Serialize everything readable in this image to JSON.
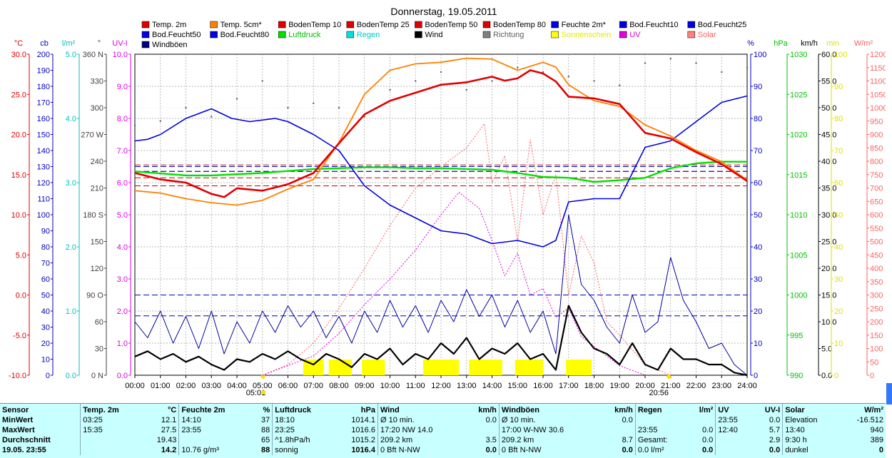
{
  "chart_data": {
    "type": "line",
    "title": "Donnerstag, 19.05.2011",
    "x_ticks": [
      "00:00",
      "01:00",
      "02:00",
      "03:00",
      "04:00",
      "05:00",
      "06:00",
      "07:00",
      "08:00",
      "09:00",
      "10:00",
      "11:00",
      "12:00",
      "13:00",
      "14:00",
      "15:00",
      "16:00",
      "17:00",
      "18:00",
      "19:00",
      "20:00",
      "21:00",
      "22:00",
      "23:00",
      "24:00"
    ],
    "sunrise_label": "05:01",
    "sunset_label": "20:56",
    "legend": [
      {
        "name": "Temp. 2m",
        "color": "#e00000"
      },
      {
        "name": "Temp. 5cm*",
        "color": "#ff8000"
      },
      {
        "name": "BodenTemp 10",
        "color": "#e00000"
      },
      {
        "name": "BodenTemp 25",
        "color": "#e00000"
      },
      {
        "name": "BodenTemp 50",
        "color": "#e00000"
      },
      {
        "name": "BodenTemp 80",
        "color": "#e00000"
      },
      {
        "name": "Feuchte 2m*",
        "color": "#0000e0"
      },
      {
        "name": "Bod.Feucht10",
        "color": "#0000e0"
      },
      {
        "name": "Bod.Feucht25",
        "color": "#0000e0"
      },
      {
        "name": "Bod.Feucht50",
        "color": "#0000e0"
      },
      {
        "name": "Bod.Feucht80",
        "color": "#0000e0"
      },
      {
        "name": "Luftdruck",
        "color": "#00e000"
      },
      {
        "name": "Regen",
        "color": "#00e0e0"
      },
      {
        "name": "Wind",
        "color": "#000000"
      },
      {
        "name": "Richtung",
        "color": "#808080"
      },
      {
        "name": "Sonnenschein",
        "color": "#ffff00"
      },
      {
        "name": "UV",
        "color": "#e000e0"
      },
      {
        "name": "Solar",
        "color": "#ff8080"
      },
      {
        "name": "Windböen",
        "color": "#000080"
      }
    ],
    "axes": [
      {
        "unit": "°C",
        "color": "#e00000",
        "ticks": [
          "30.0",
          "25.0",
          "20.0",
          "15.0",
          "10.0",
          "5.0",
          "0.0",
          "-5.0",
          "-10.0"
        ]
      },
      {
        "unit": "cb",
        "color": "#0000c0",
        "ticks": [
          "200",
          "190",
          "180",
          "170",
          "160",
          "150",
          "140",
          "130",
          "120",
          "110",
          "100",
          "90",
          "80",
          "70",
          "60",
          "50",
          "40",
          "30",
          "20",
          "10",
          "0"
        ]
      },
      {
        "unit": "l/m²",
        "color": "#00c0c0",
        "ticks": [
          "5.0",
          "4.0",
          "3.0",
          "2.0",
          "1.0",
          "0.0"
        ]
      },
      {
        "unit": "°",
        "color": "#404040",
        "ticks": [
          "360 N",
          "330",
          "300",
          "270 W",
          "240",
          "210",
          "180 S",
          "150",
          "120",
          "90 O",
          "60",
          "30",
          "0 N"
        ]
      },
      {
        "unit": "UV-I",
        "color": "#e000e0",
        "ticks": [
          "10.0",
          "9.0",
          "8.0",
          "7.0",
          "6.0",
          "5.0",
          "4.0",
          "3.0",
          "2.0",
          "1.0",
          "0.0"
        ]
      },
      {
        "unit": "%",
        "color": "#0000c0",
        "ticks": [
          "100",
          "90",
          "80",
          "70",
          "60",
          "50",
          "40",
          "30",
          "20",
          "10",
          "0"
        ]
      },
      {
        "unit": "hPa",
        "color": "#00c000",
        "ticks": [
          "1030",
          "1025",
          "1020",
          "1015",
          "1010",
          "1005",
          "1000",
          "995",
          "990"
        ]
      },
      {
        "unit": "km/h",
        "color": "#000000",
        "ticks": [
          "60.0",
          "55.0",
          "50.0",
          "45.0",
          "40.0",
          "35.0",
          "30.0",
          "25.0",
          "20.0",
          "15.0",
          "10.0",
          "5.0",
          "0.0"
        ]
      },
      {
        "unit": "min",
        "color": "#e0e000",
        "ticks": [
          "100",
          "90",
          "80",
          "70",
          "60",
          "50",
          "40",
          "30",
          "20",
          "10",
          "0"
        ]
      },
      {
        "unit": "W/m²",
        "color": "#ff6060",
        "ticks": [
          "1200",
          "1150",
          "1100",
          "1050",
          "1000",
          "950",
          "900",
          "850",
          "800",
          "750",
          "700",
          "650",
          "600",
          "550",
          "500",
          "450",
          "400",
          "350",
          "300",
          "250",
          "200",
          "150",
          "100",
          "50",
          "0"
        ]
      }
    ],
    "series": [
      {
        "name": "Temp. 2m",
        "unit": "°C",
        "hours": [
          0,
          1,
          2,
          3,
          3.5,
          4,
          5,
          6,
          7,
          8,
          9,
          10,
          11,
          12,
          13,
          14,
          14.5,
          15,
          15.5,
          16,
          16.5,
          17,
          18,
          19,
          20,
          21,
          22,
          23,
          24
        ],
        "values": [
          15.2,
          14.4,
          14.0,
          12.6,
          12.2,
          13.3,
          13.0,
          13.8,
          15.2,
          18.9,
          22.5,
          24.2,
          25.2,
          26.2,
          26.5,
          27.2,
          26.7,
          27.0,
          28.0,
          27.6,
          26.6,
          24.7,
          24.5,
          23.8,
          20.2,
          19.5,
          17.8,
          16.3,
          14.2
        ]
      },
      {
        "name": "Temp. 5cm*",
        "unit": "°C",
        "hours": [
          0,
          1,
          2,
          3,
          4,
          5,
          6,
          7,
          8,
          9,
          10,
          11,
          12,
          13,
          14,
          15,
          16,
          16.5,
          17,
          18,
          19,
          20,
          21,
          22,
          23,
          24
        ],
        "values": [
          13.0,
          12.7,
          12.0,
          11.5,
          11.2,
          11.8,
          13.2,
          14.4,
          19.0,
          25.0,
          28.0,
          28.8,
          29.0,
          29.5,
          29.4,
          28.0,
          29.0,
          28.4,
          26.2,
          24.2,
          23.5,
          21.2,
          19.8,
          18.0,
          16.6,
          14.3
        ]
      },
      {
        "name": "Feuchte 2m*",
        "unit": "%",
        "hours": [
          0,
          0.5,
          1,
          2,
          3,
          3.8,
          4.5,
          5.5,
          6,
          7,
          8,
          9,
          10,
          11,
          12,
          13,
          14,
          15,
          16,
          16.5,
          17,
          18,
          19,
          20,
          21,
          22,
          23,
          24
        ],
        "values": [
          73,
          73.5,
          75,
          80,
          83,
          80,
          79,
          80,
          79,
          75,
          70,
          59,
          53,
          49,
          45,
          44,
          41,
          42,
          40,
          42,
          54,
          55,
          55,
          71,
          73,
          79,
          85,
          87
        ]
      },
      {
        "name": "Luftdruck",
        "unit": "hPa",
        "hours": [
          0,
          2,
          3,
          5,
          7,
          8,
          9,
          10,
          11,
          12,
          13,
          14,
          15,
          16,
          17,
          18,
          19,
          20,
          21,
          22,
          23,
          24
        ],
        "values": [
          1015.4,
          1014.9,
          1014.9,
          1015.2,
          1015.7,
          1015.8,
          1015.9,
          1015.9,
          1015.8,
          1015.8,
          1015.7,
          1015.6,
          1015.2,
          1014.7,
          1014.6,
          1014.1,
          1014.3,
          1014.6,
          1015.8,
          1016.4,
          1016.6,
          1016.6
        ]
      }
    ],
    "ref_lines": [
      {
        "name": "BodenTemp 10",
        "unit": "°C",
        "value": 16.2
      },
      {
        "name": "BodenTemp 25",
        "unit": "°C",
        "value": 15.4
      },
      {
        "name": "BodenTemp 50",
        "unit": "°C",
        "value": 14.6
      },
      {
        "name": "BodenTemp 80",
        "unit": "°C",
        "value": 13.6
      },
      {
        "name": "Bod.Feucht10",
        "unit": "cb",
        "value": 130
      },
      {
        "name": "Bod.Feucht25",
        "unit": "cb",
        "value": 127
      },
      {
        "name": "Bod.Feucht50",
        "unit": "cb",
        "value": 50
      },
      {
        "name": "Bod.Feucht80",
        "unit": "cb",
        "value": 37
      }
    ],
    "sunshine_hours": [
      [
        6.6,
        7.4
      ],
      [
        7.6,
        8.5
      ],
      [
        8.9,
        9.8
      ],
      [
        11.3,
        12.7
      ],
      [
        13.1,
        14.4
      ],
      [
        14.9,
        16.0
      ],
      [
        16.9,
        17.9
      ]
    ],
    "wind": {
      "unit": "km/h",
      "hours": [
        0,
        0.5,
        1,
        1.5,
        2,
        2.5,
        3,
        3.5,
        4,
        4.5,
        5,
        5.5,
        6,
        6.5,
        7,
        7.5,
        8,
        8.5,
        9,
        9.5,
        10,
        10.5,
        11,
        11.5,
        12,
        12.5,
        13,
        13.5,
        14,
        14.5,
        15,
        15.5,
        16,
        16.5,
        17,
        17.5,
        18,
        18.5,
        19,
        19.5,
        20,
        20.5,
        21,
        21.5,
        22,
        22.5,
        23,
        23.5,
        24
      ],
      "values": [
        3.5,
        4.5,
        3,
        4,
        2.5,
        3.5,
        2,
        1,
        3,
        2.5,
        4,
        3,
        4.5,
        3,
        2,
        4,
        3,
        1.5,
        4,
        3,
        5,
        2,
        4,
        3,
        6,
        4,
        7,
        3,
        5,
        4,
        6,
        3,
        4,
        1,
        13,
        8,
        5,
        4,
        2,
        6,
        2,
        1,
        5,
        3,
        3,
        2,
        2,
        0.5,
        0
      ]
    },
    "gusts": {
      "unit": "km/h",
      "hours": [
        0,
        0.5,
        1,
        1.5,
        2,
        2.5,
        3,
        3.5,
        4,
        4.5,
        5,
        5.5,
        6,
        6.5,
        7,
        7.5,
        8,
        8.5,
        9,
        9.5,
        10,
        10.5,
        11,
        11.5,
        12,
        12.5,
        13,
        13.5,
        14,
        14.5,
        15,
        15.5,
        16,
        16.5,
        17,
        17.5,
        18,
        18.5,
        19,
        19.5,
        20,
        20.5,
        21,
        21.5,
        22,
        22.5,
        23,
        23.5,
        24
      ],
      "values": [
        10,
        7,
        12,
        6,
        11,
        5,
        12,
        4,
        10,
        6,
        12,
        8,
        13,
        9,
        12,
        7,
        11,
        6,
        12,
        8,
        14,
        9,
        13,
        8,
        14,
        10,
        16,
        11,
        15,
        9,
        14,
        8,
        12,
        4,
        30,
        17,
        14,
        9,
        6,
        15,
        8,
        10,
        22,
        14,
        10,
        5,
        6,
        2,
        0
      ]
    },
    "uv": {
      "unit": "UV-I",
      "hours": [
        5,
        6,
        7,
        8,
        9,
        10,
        11,
        12,
        12.7,
        13.5,
        14,
        14.5,
        15,
        15.5,
        16,
        16.5,
        17,
        17.5,
        18,
        18.5,
        19,
        20
      ],
      "values": [
        0,
        0.3,
        0.6,
        1.3,
        2.2,
        3.0,
        3.9,
        5.0,
        5.7,
        5.2,
        4.2,
        3.1,
        3.8,
        2.5,
        2.7,
        1.8,
        2.1,
        1.2,
        0.9,
        0.6,
        0.3,
        0
      ]
    },
    "solar": {
      "unit": "W/m²",
      "hours": [
        5,
        6,
        7,
        8,
        9,
        10,
        11,
        12,
        13,
        13.7,
        14,
        14.5,
        15,
        15.5,
        16,
        16.5,
        17,
        17.5,
        18,
        18.5,
        19,
        20,
        21
      ],
      "values": [
        0,
        40,
        120,
        250,
        400,
        560,
        700,
        780,
        850,
        940,
        720,
        820,
        500,
        880,
        600,
        750,
        300,
        520,
        420,
        200,
        150,
        40,
        0
      ]
    },
    "direction": {
      "unit": "°",
      "hours": [
        0,
        1,
        2,
        3,
        4,
        5,
        6,
        7,
        8,
        9,
        10,
        11,
        12,
        13,
        14,
        15,
        16,
        17,
        18,
        19,
        20,
        21,
        22,
        23,
        24
      ],
      "values": [
        280,
        285,
        300,
        290,
        310,
        330,
        300,
        305,
        300,
        290,
        320,
        330,
        340,
        320,
        330,
        345,
        340,
        335,
        330,
        325,
        350,
        355,
        350,
        340,
        345
      ]
    }
  },
  "table": {
    "headers": [
      {
        "label": "Sensor",
        "unit": ""
      },
      {
        "label": "Temp. 2m",
        "unit": "°C"
      },
      {
        "label": "Feuchte 2m",
        "unit": "%"
      },
      {
        "label": "Luftdruck",
        "unit": "hPa"
      },
      {
        "label": "Wind",
        "unit": "km/h"
      },
      {
        "label": "Windböen",
        "unit": "km/h"
      },
      {
        "label": "Regen",
        "unit": "l/m²"
      },
      {
        "label": "UV",
        "unit": "UV-I"
      },
      {
        "label": "Solar",
        "unit": "W/m²"
      }
    ],
    "rows": [
      {
        "label": "MinWert",
        "cells": [
          [
            "03:25",
            "12.1"
          ],
          [
            "14:10",
            "37"
          ],
          [
            "18:10",
            "1014.1"
          ],
          [
            "Ø 10 min.",
            "0.0"
          ],
          [
            "Ø 10 min.",
            "0.0"
          ],
          [
            "",
            ""
          ],
          [
            "23:55",
            "0.0"
          ],
          [
            "Elevation",
            "-16.512"
          ]
        ]
      },
      {
        "label": "MaxWert",
        "cells": [
          [
            "15:35",
            "27.5"
          ],
          [
            "23:55",
            "88"
          ],
          [
            "23:25",
            "1016.6"
          ],
          [
            "17:20   NW 14.0",
            ""
          ],
          [
            "17:00  W-NW 30.6",
            ""
          ],
          [
            "23:55",
            "0.0"
          ],
          [
            "12:40",
            "5.7"
          ],
          [
            "13:40",
            "940"
          ]
        ]
      },
      {
        "label": "Durchschnitt",
        "cells": [
          [
            "",
            "19.43"
          ],
          [
            "",
            "65"
          ],
          [
            "^1.8hPa/h",
            "1015.2"
          ],
          [
            "209.2 km",
            "3.5"
          ],
          [
            "209.2 km",
            "8.7"
          ],
          [
            "Gesamt:",
            "0.0"
          ],
          [
            "",
            "2.9"
          ],
          [
            "9:30 h",
            "389"
          ]
        ]
      },
      {
        "label": "19.05. 23:55",
        "cells": [
          [
            "",
            "14.2"
          ],
          [
            "10.76 g/m³",
            "88"
          ],
          [
            "sonnig",
            "1016.4"
          ],
          [
            "0 Bft N-NW",
            "0.0"
          ],
          [
            "0 Bft N-NW",
            "0.0"
          ],
          [
            "0.0 l/m²",
            "0.0"
          ],
          [
            "",
            "0.0"
          ],
          [
            "dunkel",
            "0"
          ]
        ]
      }
    ]
  }
}
